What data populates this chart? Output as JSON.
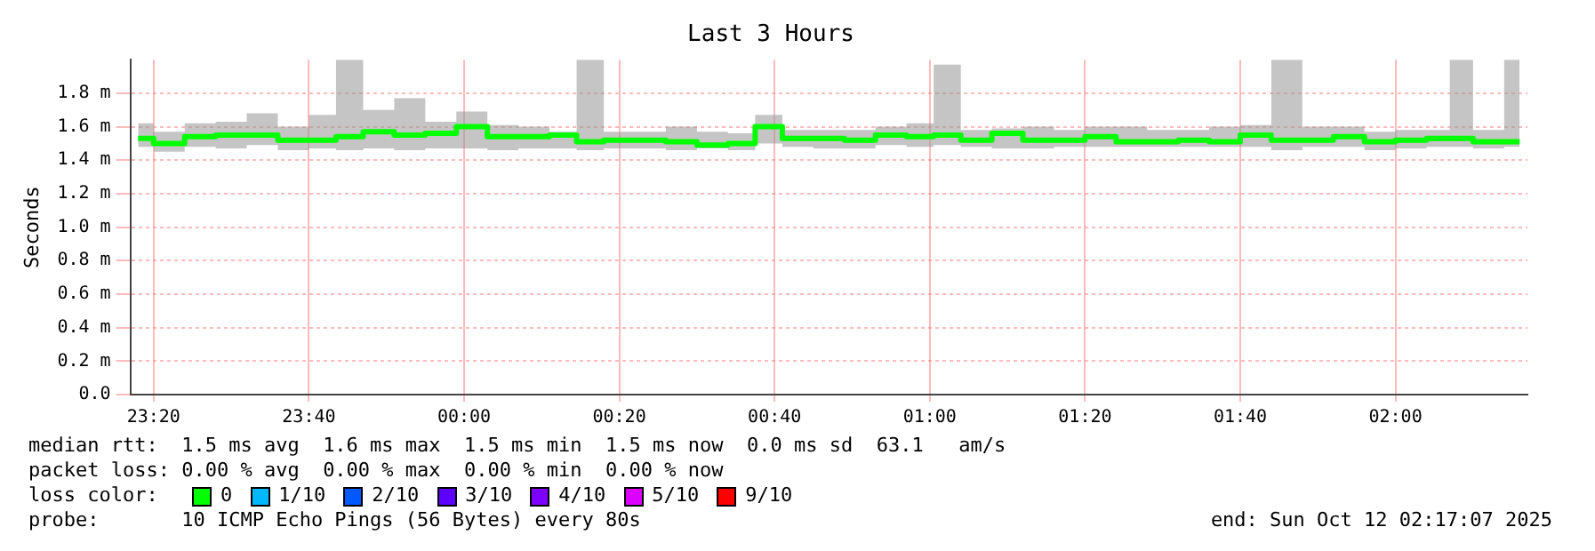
{
  "chart_data": {
    "type": "step",
    "title": "Last 3 Hours",
    "ylabel": "Seconds",
    "x": [
      "2025-10-11T23:18",
      "2025-10-11T23:22",
      "2025-10-11T23:26",
      "2025-10-11T23:30",
      "2025-10-11T23:34",
      "2025-10-11T23:38",
      "2025-10-11T23:42",
      "2025-10-11T23:45",
      "2025-10-11T23:49",
      "2025-10-11T23:53",
      "2025-10-11T23:57",
      "2025-10-12T00:01",
      "2025-10-12T00:05",
      "2025-10-12T00:09",
      "2025-10-12T00:13",
      "2025-10-12T00:16",
      "2025-10-12T00:20",
      "2025-10-12T00:24",
      "2025-10-12T00:28",
      "2025-10-12T00:32",
      "2025-10-12T00:36",
      "2025-10-12T00:39",
      "2025-10-12T00:43",
      "2025-10-12T00:47",
      "2025-10-12T00:51",
      "2025-10-12T00:55",
      "2025-10-12T00:59",
      "2025-10-12T01:02",
      "2025-10-12T01:06",
      "2025-10-12T01:10",
      "2025-10-12T01:14",
      "2025-10-12T01:18",
      "2025-10-12T01:22",
      "2025-10-12T01:26",
      "2025-10-12T01:30",
      "2025-10-12T01:34",
      "2025-10-12T01:38",
      "2025-10-12T01:42",
      "2025-10-12T01:46",
      "2025-10-12T01:50",
      "2025-10-12T01:54",
      "2025-10-12T01:58",
      "2025-10-12T02:02",
      "2025-10-12T02:06",
      "2025-10-12T02:08",
      "2025-10-12T02:12",
      "2025-10-12T02:16"
    ],
    "series": [
      {
        "color": "#00ff00",
        "values": [
          1.53,
          1.5,
          1.54,
          1.55,
          1.55,
          1.52,
          1.52,
          1.54,
          1.57,
          1.55,
          1.56,
          1.6,
          1.54,
          1.54,
          1.55,
          1.51,
          1.52,
          1.52,
          1.51,
          1.49,
          1.5,
          1.6,
          1.53,
          1.53,
          1.52,
          1.55,
          1.54,
          1.55,
          1.52,
          1.56,
          1.52,
          1.52,
          1.54,
          1.51,
          1.51,
          1.52,
          1.51,
          1.55,
          1.52,
          1.52,
          1.54,
          1.51,
          1.52,
          1.53,
          1.53,
          1.51,
          1.51
        ],
        "lower": [
          1.48,
          1.45,
          1.48,
          1.47,
          1.49,
          1.46,
          1.47,
          1.46,
          1.47,
          1.46,
          1.47,
          1.47,
          1.46,
          1.47,
          1.47,
          1.46,
          1.47,
          1.47,
          1.46,
          1.47,
          1.46,
          1.5,
          1.48,
          1.47,
          1.47,
          1.49,
          1.48,
          1.49,
          1.48,
          1.47,
          1.47,
          1.48,
          1.48,
          1.48,
          1.48,
          1.48,
          1.48,
          1.48,
          1.46,
          1.48,
          1.48,
          1.46,
          1.47,
          1.48,
          1.48,
          1.47,
          1.48
        ],
        "upper": [
          1.62,
          1.57,
          1.62,
          1.63,
          1.68,
          1.6,
          1.67,
          2.0,
          1.7,
          1.77,
          1.63,
          1.69,
          1.61,
          1.6,
          1.57,
          2.0,
          1.57,
          1.57,
          1.6,
          1.57,
          1.56,
          1.67,
          1.58,
          1.58,
          1.58,
          1.6,
          1.62,
          1.97,
          1.58,
          1.59,
          1.6,
          1.58,
          1.6,
          1.6,
          1.58,
          1.58,
          1.6,
          1.61,
          2.0,
          1.6,
          1.6,
          1.57,
          1.58,
          1.58,
          2.0,
          1.58,
          2.0
        ]
      }
    ],
    "xlim": [
      "2025-10-11T23:17",
      "2025-10-12T02:17"
    ],
    "xticks": [
      {
        "value": "2025-10-11T23:20",
        "label": "23:20"
      },
      {
        "value": "2025-10-11T23:40",
        "label": "23:40"
      },
      {
        "value": "2025-10-12T00:00",
        "label": "00:00"
      },
      {
        "value": "2025-10-12T00:20",
        "label": "00:20"
      },
      {
        "value": "2025-10-12T00:40",
        "label": "00:40"
      },
      {
        "value": "2025-10-12T01:00",
        "label": "01:00"
      },
      {
        "value": "2025-10-12T01:20",
        "label": "01:20"
      },
      {
        "value": "2025-10-12T01:40",
        "label": "01:40"
      },
      {
        "value": "2025-10-12T02:00",
        "label": "02:00"
      }
    ],
    "ylim": [
      0,
      2.0
    ],
    "yticks": [
      {
        "value": 0,
        "label": "0.0"
      },
      {
        "value": 0.2,
        "label": "0.2 m"
      },
      {
        "value": 0.4,
        "label": "0.4 m"
      },
      {
        "value": 0.6,
        "label": "0.6 m"
      },
      {
        "value": 0.8,
        "label": "0.8 m"
      },
      {
        "value": 1.0,
        "label": "1.0 m"
      },
      {
        "value": 1.2,
        "label": "1.2 m"
      },
      {
        "value": 1.4,
        "label": "1.4 m"
      },
      {
        "value": 1.6,
        "label": "1.6 m"
      },
      {
        "value": 1.8,
        "label": "1.8 m"
      }
    ],
    "grid": true,
    "legend": false,
    "marker": "none",
    "line_style": "solid",
    "annotations": [
      "median rtt:  1.5 ms avg  1.6 ms max  1.5 ms min  1.5 ms now  0.0 ms sd  63.1   am/s",
      "packet loss: 0.00 % avg  0.00 % max  0.00 % min  0.00 % now",
      "loss color:",
      "0",
      "1/10",
      "2/10",
      "3/10",
      "4/10",
      "5/10",
      "9/10",
      "probe:       10 ICMP Echo Pings (56 Bytes) every 80s",
      "end: Sun Oct 12 02:17:07 2025"
    ]
  }
}
